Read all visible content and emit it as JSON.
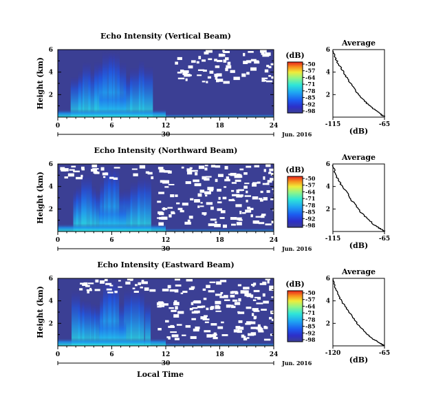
{
  "chart_data": [
    {
      "type": "heatmap",
      "title": "Echo Intensity (Vertical Beam)",
      "ylabel": "Height (km)",
      "yticks": [
        2,
        4,
        6
      ],
      "ytick_labels": [
        "2",
        "4",
        "6"
      ],
      "ylim": [
        0,
        6
      ],
      "xticks": [
        0,
        6,
        12,
        18,
        24
      ],
      "xtick_labels": [
        "0",
        "6",
        "12",
        "18",
        "24"
      ],
      "xlim": [
        0,
        24
      ],
      "date_day": "30",
      "date_label": "Jun. 2016",
      "colorbar": {
        "unit": "(dB)",
        "ticks": [
          "-50",
          "-57",
          "-64",
          "-71",
          "-78",
          "-85",
          "-92",
          "-98"
        ]
      },
      "profile": {
        "title": "Average",
        "xlabel": "(dB)",
        "xtick_labels": [
          "-115",
          "-65"
        ],
        "xlim": [
          -115,
          -65
        ],
        "yticks": [
          "2",
          "4",
          "6"
        ],
        "ylim": [
          0,
          6
        ],
        "points": [
          [
            -115,
            5.9
          ],
          [
            -113,
            5.3
          ],
          [
            -110,
            4.8
          ],
          [
            -106,
            4.2
          ],
          [
            -102,
            3.6
          ],
          [
            -98,
            3.0
          ],
          [
            -94,
            2.5
          ],
          [
            -89,
            1.9
          ],
          [
            -84,
            1.4
          ],
          [
            -78,
            0.9
          ],
          [
            -72,
            0.5
          ],
          [
            -68,
            0.2
          ],
          [
            -65,
            0.05
          ]
        ]
      }
    },
    {
      "type": "heatmap",
      "title": "Echo Intensity (Northward Beam)",
      "ylabel": "Height (km)",
      "yticks": [
        2,
        4,
        6
      ],
      "ytick_labels": [
        "2",
        "4",
        "6"
      ],
      "ylim": [
        0,
        6
      ],
      "xticks": [
        0,
        6,
        12,
        18,
        24
      ],
      "xtick_labels": [
        "0",
        "6",
        "12",
        "18",
        "24"
      ],
      "xlim": [
        0,
        24
      ],
      "date_day": "30",
      "date_label": "Jun. 2016",
      "colorbar": {
        "unit": "(dB)",
        "ticks": [
          "-50",
          "-57",
          "-64",
          "-71",
          "-78",
          "-85",
          "-92",
          "-98"
        ]
      },
      "profile": {
        "title": "Average",
        "xlabel": "(dB)",
        "xtick_labels": [
          "-115",
          "-65"
        ],
        "xlim": [
          -115,
          -65
        ],
        "yticks": [
          "2",
          "4",
          "6"
        ],
        "ylim": [
          0,
          6
        ],
        "points": [
          [
            -115,
            5.9
          ],
          [
            -113,
            5.2
          ],
          [
            -110,
            4.6
          ],
          [
            -106,
            4.0
          ],
          [
            -101,
            3.4
          ],
          [
            -97,
            2.8
          ],
          [
            -92,
            2.2
          ],
          [
            -87,
            1.6
          ],
          [
            -81,
            1.1
          ],
          [
            -75,
            0.6
          ],
          [
            -70,
            0.3
          ],
          [
            -66,
            0.1
          ],
          [
            -65,
            0.03
          ]
        ]
      }
    },
    {
      "type": "heatmap",
      "title": "Echo Intensity (Eastward Beam)",
      "ylabel": "Height (km)",
      "yticks": [
        2,
        4,
        6
      ],
      "ytick_labels": [
        "2",
        "4",
        "6"
      ],
      "ylim": [
        0,
        6
      ],
      "xticks": [
        0,
        6,
        12,
        18,
        24
      ],
      "xtick_labels": [
        "0",
        "6",
        "12",
        "18",
        "24"
      ],
      "xlim": [
        0,
        24
      ],
      "date_day": "30",
      "date_label": "Jun. 2016",
      "xlabel": "Local Time",
      "colorbar": {
        "unit": "(dB)",
        "ticks": [
          "-50",
          "-57",
          "-64",
          "-71",
          "-78",
          "-85",
          "-92",
          "-98"
        ]
      },
      "profile": {
        "title": "Average",
        "xlabel": "(dB)",
        "xtick_labels": [
          "-120",
          "-65"
        ],
        "xlim": [
          -120,
          -65
        ],
        "yticks": [
          "2",
          "4",
          "6"
        ],
        "ylim": [
          0,
          6
        ],
        "points": [
          [
            -120,
            5.9
          ],
          [
            -118,
            5.3
          ],
          [
            -115,
            4.6
          ],
          [
            -111,
            4.0
          ],
          [
            -106,
            3.4
          ],
          [
            -101,
            2.8
          ],
          [
            -96,
            2.2
          ],
          [
            -90,
            1.6
          ],
          [
            -84,
            1.1
          ],
          [
            -77,
            0.6
          ],
          [
            -71,
            0.3
          ],
          [
            -67,
            0.1
          ],
          [
            -65,
            0.03
          ]
        ]
      }
    }
  ],
  "colors": {
    "background_echo": "#3b3f94",
    "colormap": [
      "#3b3f94",
      "#2d2fc8",
      "#1c5cf0",
      "#1fa5f2",
      "#2fe6d8",
      "#8ef58a",
      "#f0ec3a",
      "#f7931e",
      "#e8221c"
    ]
  }
}
